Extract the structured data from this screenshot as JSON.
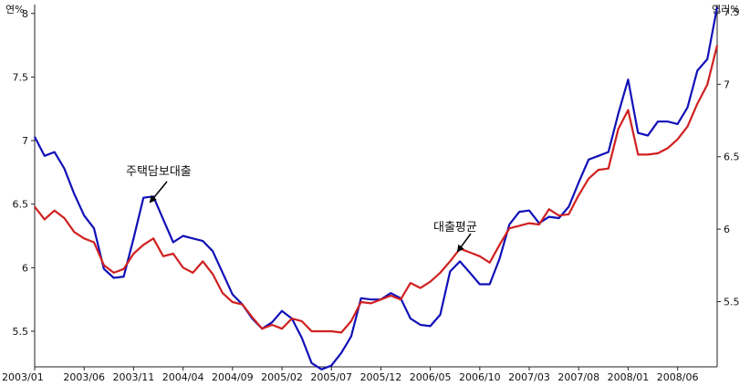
{
  "chart_data": {
    "type": "line",
    "left_axis_unit": "연%",
    "right_axis_unit": "연리%",
    "left_yticks": [
      "5.5",
      "6",
      "6.5",
      "7",
      "7.5",
      "8"
    ],
    "left_ylim": [
      5.22,
      8.07
    ],
    "right_yticks": [
      "5.5",
      "6",
      "6.5",
      "7",
      "7.5"
    ],
    "right_ylim": [
      5.05,
      7.55
    ],
    "x_tick_labels": [
      "2003/01",
      "2003/06",
      "2003/11",
      "2004/04",
      "2004/09",
      "2005/02",
      "2005/07",
      "2005/12",
      "2006/05",
      "2006/10",
      "2007/03",
      "2007/08",
      "2008/01",
      "2008/06"
    ],
    "x_start": "2003/01",
    "x_end": "2008/10",
    "grid": false,
    "legend": "none",
    "series": [
      {
        "name": "주택담보대출",
        "color": "#1010b8",
        "values": [
          7.03,
          6.88,
          6.91,
          6.78,
          6.58,
          6.41,
          6.31,
          5.99,
          5.92,
          5.93,
          6.23,
          6.55,
          6.56,
          6.38,
          6.2,
          6.25,
          6.23,
          6.21,
          6.13,
          5.96,
          5.79,
          5.71,
          5.6,
          5.52,
          5.57,
          5.66,
          5.6,
          5.45,
          5.25,
          5.2,
          5.23,
          5.33,
          5.46,
          5.76,
          5.75,
          5.75,
          5.8,
          5.76,
          5.6,
          5.55,
          5.54,
          5.63,
          5.97,
          6.05,
          5.96,
          5.87,
          5.87,
          6.07,
          6.34,
          6.44,
          6.45,
          6.35,
          6.4,
          6.39,
          6.48,
          6.67,
          6.85,
          6.88,
          6.91,
          7.21,
          7.48,
          7.06,
          7.04,
          7.15,
          7.15,
          7.13,
          7.26,
          7.55,
          7.64,
          8.05
        ]
      },
      {
        "name": "대출평균",
        "color": "#d02020",
        "values": [
          6.48,
          6.38,
          6.45,
          6.39,
          6.28,
          6.23,
          6.2,
          6.02,
          5.96,
          5.99,
          6.11,
          6.18,
          6.23,
          6.09,
          6.11,
          6.0,
          5.96,
          6.05,
          5.95,
          5.8,
          5.73,
          5.71,
          5.61,
          5.52,
          5.55,
          5.52,
          5.6,
          5.58,
          5.5,
          5.5,
          5.5,
          5.49,
          5.58,
          5.73,
          5.72,
          5.75,
          5.78,
          5.75,
          5.88,
          5.84,
          5.89,
          5.96,
          6.05,
          6.15,
          6.12,
          6.09,
          6.04,
          6.18,
          6.31,
          6.33,
          6.35,
          6.34,
          6.46,
          6.41,
          6.42,
          6.57,
          6.7,
          6.77,
          6.78,
          7.09,
          7.24,
          6.89,
          6.89,
          6.9,
          6.94,
          7.01,
          7.11,
          7.29,
          7.44,
          7.75
        ]
      }
    ],
    "annotations": [
      {
        "text": "주택담보대출",
        "series": 0,
        "x_index": 12
      },
      {
        "text": "대출평균",
        "series": 1,
        "x_index": 43
      }
    ]
  }
}
